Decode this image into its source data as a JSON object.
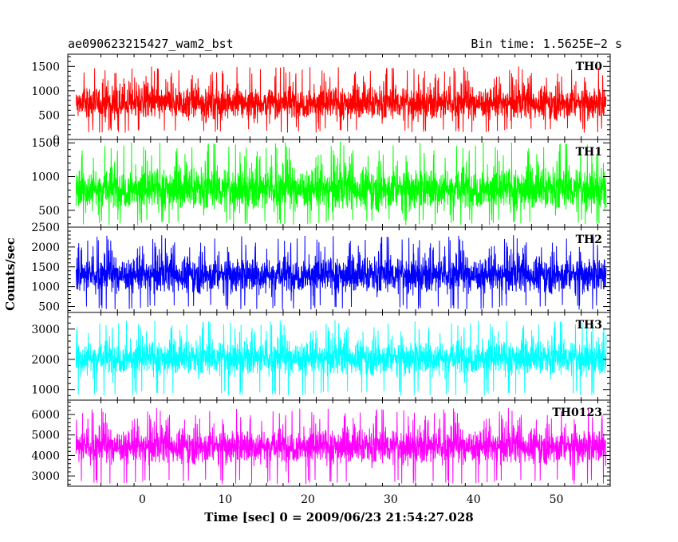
{
  "header": {
    "title": "ae090623215427_wam2_bst",
    "bin_time": "Bin time: 1.5625E−2 s"
  },
  "chart_data": {
    "type": "line",
    "xlabel": "Time [sec] 0 = 2009/06/23 21:54:27.028",
    "ylabel": "Counts/sec",
    "xlim": [
      -9,
      56.5
    ],
    "data_x_range": [
      -8,
      56
    ],
    "x_ticks": [
      0,
      10,
      20,
      30,
      40,
      50
    ],
    "panels": [
      {
        "name": "TH0",
        "color": "#ff0000",
        "ylim": [
          0,
          1750
        ],
        "y_ticks": [
          0,
          500,
          1000,
          1500
        ],
        "base": 750,
        "noise": 300,
        "floor": 140,
        "ceil": 1750
      },
      {
        "name": "TH1",
        "color": "#00ff00",
        "ylim": [
          250,
          1550
        ],
        "y_ticks": [
          500,
          1000,
          1500
        ],
        "base": 820,
        "noise": 280,
        "floor": 280,
        "ceil": 1550
      },
      {
        "name": "TH2",
        "color": "#0000ff",
        "ylim": [
          350,
          2500
        ],
        "y_ticks": [
          500,
          1000,
          1500,
          2000,
          2500
        ],
        "base": 1300,
        "noise": 400,
        "floor": 420,
        "ceil": 2420
      },
      {
        "name": "TH3",
        "color": "#00ffff",
        "ylim": [
          650,
          3550
        ],
        "y_ticks": [
          1000,
          2000,
          3000
        ],
        "base": 2050,
        "noise": 500,
        "floor": 800,
        "ceil": 3450
      },
      {
        "name": "TH0123",
        "color": "#ff00ff",
        "ylim": [
          2500,
          6700
        ],
        "y_ticks": [
          3000,
          4000,
          5000,
          6000
        ],
        "base": 4450,
        "noise": 750,
        "floor": 2600,
        "ceil": 6600
      }
    ]
  }
}
